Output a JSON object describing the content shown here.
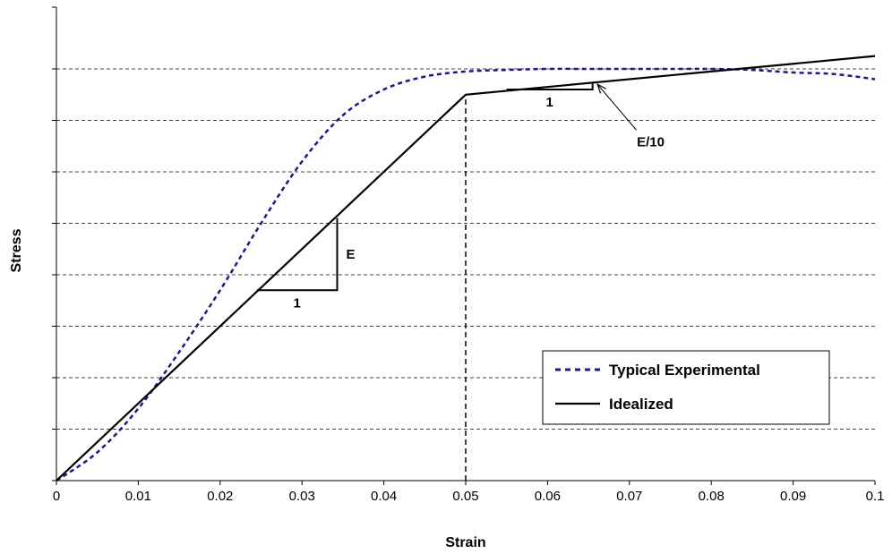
{
  "chart_data": {
    "type": "line",
    "xlabel": "Strain",
    "ylabel": "Stress",
    "xlim": [
      0,
      0.1
    ],
    "ylim": [
      0,
      9.2
    ],
    "x_ticks": [
      0,
      0.01,
      0.02,
      0.03,
      0.04,
      0.05,
      0.06,
      0.07,
      0.08,
      0.09,
      0.1
    ],
    "x_tick_labels": [
      "0",
      "0.01",
      "0.02",
      "0.03",
      "0.04",
      "0.05",
      "0.06",
      "0.07",
      "0.08",
      "0.09",
      "0.1"
    ],
    "y_gridlines": [
      1,
      2,
      3,
      4,
      5,
      6,
      7,
      8
    ],
    "y_tick_labels_shown": false,
    "grid": "horizontal-dashed",
    "legend_position": "lower-right",
    "series": [
      {
        "name": "Typical Experimental",
        "style": "dotted",
        "color": "#1a1a8c",
        "x": [
          0,
          0.005,
          0.01,
          0.015,
          0.02,
          0.025,
          0.03,
          0.035,
          0.04,
          0.045,
          0.05,
          0.055,
          0.06,
          0.065,
          0.07,
          0.075,
          0.08,
          0.085,
          0.09,
          0.095,
          0.1
        ],
        "y": [
          0,
          0.55,
          1.4,
          2.5,
          3.7,
          5.0,
          6.2,
          7.1,
          7.6,
          7.85,
          7.95,
          7.98,
          8.0,
          8.0,
          8.0,
          8.0,
          8.0,
          7.98,
          7.93,
          7.9,
          7.8
        ]
      },
      {
        "name": "Idealized",
        "style": "solid",
        "color": "#000000",
        "x": [
          0,
          0.05,
          0.1
        ],
        "y": [
          0,
          7.5,
          8.25
        ]
      }
    ],
    "reference_lines": [
      {
        "kind": "vertical-dashed",
        "x": 0.05,
        "y_from": 0,
        "y_to": 7.5
      }
    ],
    "annotations": [
      {
        "kind": "slope-triangle",
        "x1": 0.0245,
        "x2": 0.0343,
        "y1": 3.7,
        "y2": 5.1,
        "run_label": "1",
        "rise_label": "E"
      },
      {
        "kind": "slope-triangle",
        "x1": 0.055,
        "x2": 0.0655,
        "y1": 7.6,
        "y2": 7.75,
        "run_label": "1"
      },
      {
        "kind": "arrow-label",
        "text": "E/10",
        "text_x": 0.0715,
        "text_y": 6.5,
        "arrow_to_x": 0.0661,
        "arrow_to_y": 7.7
      }
    ]
  }
}
